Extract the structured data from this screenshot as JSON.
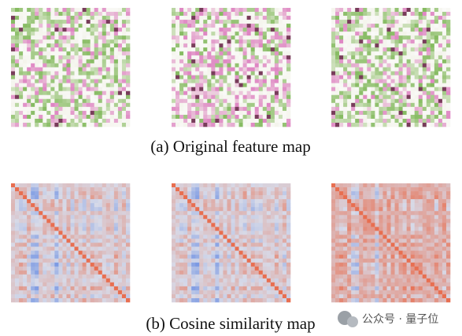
{
  "figure": {
    "panels": [
      {
        "caption": "(a) Original feature map"
      },
      {
        "caption": "(b) Cosine similarity map"
      }
    ]
  },
  "watermark": "公众号 · 量子位"
}
